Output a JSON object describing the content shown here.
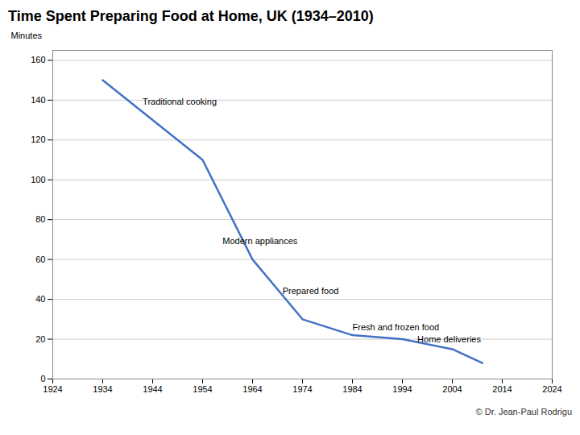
{
  "chart_data": {
    "type": "line",
    "title": "Time Spent Preparing Food at Home, UK (1934–2010)",
    "ylabel": "Minutes",
    "x": [
      1934,
      1944,
      1954,
      1964,
      1974,
      1984,
      1994,
      2004,
      2010
    ],
    "values": [
      150,
      130,
      110,
      60,
      30,
      22,
      20,
      15,
      8
    ],
    "color": "#4472C4",
    "xlim": [
      1924,
      2024
    ],
    "ylim": [
      0,
      165
    ],
    "xticks": [
      1924,
      1934,
      1944,
      1954,
      1964,
      1974,
      1984,
      1994,
      2004,
      2014,
      2024
    ],
    "yticks": [
      0,
      20,
      40,
      60,
      80,
      100,
      120,
      140,
      160
    ],
    "grid": true,
    "annotations": [
      {
        "text": "Traditional cooking",
        "x": 1942,
        "y": 139
      },
      {
        "text": "Modern appliances",
        "x": 1958,
        "y": 69
      },
      {
        "text": "Prepared food",
        "x": 1970,
        "y": 44
      },
      {
        "text": "Fresh and frozen food",
        "x": 1984,
        "y": 26
      },
      {
        "text": "Home deliveries",
        "x": 1997,
        "y": 20
      }
    ],
    "credit": "© Dr. Jean-Paul Rodrigu"
  }
}
